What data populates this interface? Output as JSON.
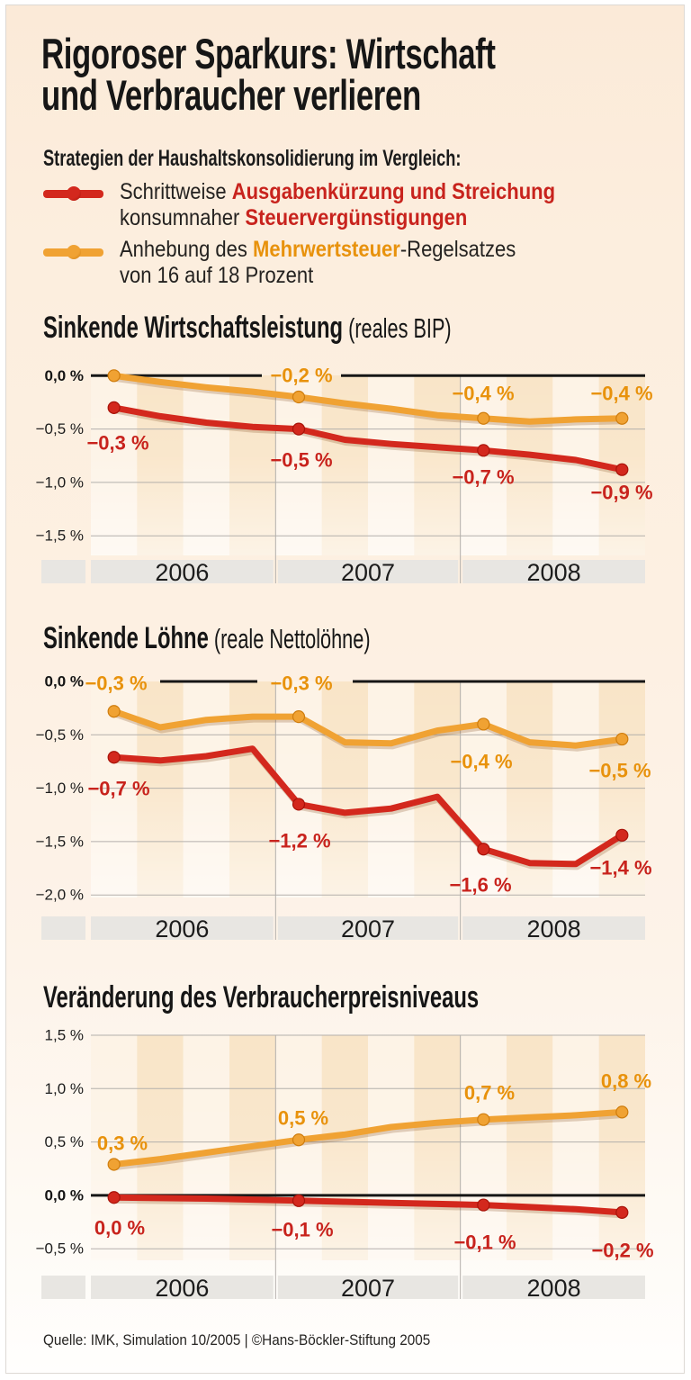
{
  "meta": {
    "colors": {
      "red_line": "#d3281d",
      "red_ring": "#a81309",
      "red_label": "#c8231d",
      "orange_line": "#f0a233",
      "orange_ring": "#cf7d0e",
      "orange_label": "#e8920c",
      "stripe_light": "#fdf3e6",
      "stripe_dark": "#f9e5c8",
      "grid": "#b3b0ac",
      "zero_line": "#161616",
      "year_box": "#e8e6e2",
      "panel_cream": "#fdf0e2"
    }
  },
  "header": {
    "title": "Rigoroser Sparkurs: Wirtschaft\nund Verbraucher verlieren",
    "subtitle": "Strategien der Haushaltskonsolidierung im Vergleich:",
    "legend": [
      {
        "color_key": "red",
        "parts": [
          {
            "t": "Schrittweise ",
            "em": false
          },
          {
            "t": "Ausgabenkürzung und Streichung",
            "em": true
          },
          {
            "t": "\nkonsumnaher ",
            "em": false
          },
          {
            "t": "Steuervergünstigungen",
            "em": true
          }
        ]
      },
      {
        "color_key": "orange",
        "parts": [
          {
            "t": "Anhebung des ",
            "em": false
          },
          {
            "t": "Mehrwertsteuer",
            "em": true
          },
          {
            "t": "-Regelsatzes\nvon 16 auf 18 Prozent",
            "em": false
          }
        ]
      }
    ]
  },
  "chart_data": [
    {
      "type": "line",
      "title": "Sinkende Wirtschaftsleistung",
      "title_note": " (reales BIP)",
      "unit": "Prozent",
      "x_years": [
        "2006",
        "2007",
        "2008"
      ],
      "points_per_year": 4,
      "ylim": [
        -1.5,
        0.0
      ],
      "grid": "on",
      "yticks": [
        {
          "value": 0.0,
          "label": "0,0 %",
          "bold": true
        },
        {
          "value": -0.5,
          "label": "−0,5 %",
          "bold": false
        },
        {
          "value": -1.0,
          "label": "−1,0 %",
          "bold": false
        },
        {
          "value": -1.5,
          "label": "−1,5 %",
          "bold": false
        }
      ],
      "series": [
        {
          "name": "Anhebung des Mehrwertsteuer-Regelsatzes",
          "color_key": "orange",
          "values": [
            0.0,
            -0.06,
            -0.11,
            -0.15,
            -0.2,
            -0.26,
            -0.31,
            -0.37,
            -0.4,
            -0.43,
            -0.41,
            -0.4
          ],
          "marker_quarters": [
            0,
            4,
            8,
            11
          ],
          "point_labels": [
            {
              "at": 4,
              "text": "−0,2 %"
            },
            {
              "at": 8,
              "text": "−0,4 %"
            },
            {
              "at": 11,
              "text": "−0,4 %"
            }
          ]
        },
        {
          "name": "Schrittweise Ausgabenkürzung und Streichung konsumnaher Steuervergünstigungen",
          "color_key": "red",
          "values": [
            -0.3,
            -0.38,
            -0.44,
            -0.48,
            -0.5,
            -0.6,
            -0.64,
            -0.67,
            -0.7,
            -0.74,
            -0.79,
            -0.88
          ],
          "marker_quarters": [
            0,
            4,
            8,
            11
          ],
          "point_labels": [
            {
              "at": 0,
              "text": "−0,3 %"
            },
            {
              "at": 4,
              "text": "−0,5 %"
            },
            {
              "at": 8,
              "text": "−0,7 %"
            },
            {
              "at": 11,
              "text": "−0,9 %"
            }
          ]
        }
      ]
    },
    {
      "type": "line",
      "title": "Sinkende Löhne",
      "title_note": " (reale Nettolöhne)",
      "unit": "Prozent",
      "x_years": [
        "2006",
        "2007",
        "2008"
      ],
      "points_per_year": 4,
      "ylim": [
        -2.0,
        0.0
      ],
      "grid": "on",
      "yticks": [
        {
          "value": 0.0,
          "label": "0,0 %",
          "bold": true
        },
        {
          "value": -0.5,
          "label": "−0,5 %",
          "bold": false
        },
        {
          "value": -1.0,
          "label": "−1,0 %",
          "bold": false
        },
        {
          "value": -1.5,
          "label": "−1,5 %",
          "bold": false
        },
        {
          "value": -2.0,
          "label": "−2,0 %",
          "bold": false
        }
      ],
      "series": [
        {
          "name": "Anhebung des Mehrwertsteuer-Regelsatzes",
          "color_key": "orange",
          "values": [
            -0.28,
            -0.43,
            -0.36,
            -0.33,
            -0.33,
            -0.57,
            -0.58,
            -0.46,
            -0.4,
            -0.57,
            -0.6,
            -0.54
          ],
          "marker_quarters": [
            0,
            4,
            8,
            11
          ],
          "point_labels": [
            {
              "at": 0,
              "text": "−0,3 %"
            },
            {
              "at": 4,
              "text": "−0,3 %"
            },
            {
              "at": 8,
              "text": "−0,4 %"
            },
            {
              "at": 11,
              "text": "−0,5 %"
            }
          ]
        },
        {
          "name": "Schrittweise Ausgabenkürzung und Streichung konsumnaher Steuervergünstigungen",
          "color_key": "red",
          "values": [
            -0.71,
            -0.74,
            -0.7,
            -0.63,
            -1.15,
            -1.23,
            -1.19,
            -1.08,
            -1.57,
            -1.7,
            -1.71,
            -1.44
          ],
          "marker_quarters": [
            0,
            4,
            8,
            11
          ],
          "point_labels": [
            {
              "at": 0,
              "text": "−0,7 %"
            },
            {
              "at": 4,
              "text": "−1,2 %"
            },
            {
              "at": 8,
              "text": "−1,6 %"
            },
            {
              "at": 11,
              "text": "−1,4 %"
            }
          ]
        }
      ]
    },
    {
      "type": "line",
      "title": "Veränderung des Verbraucherpreisniveaus",
      "title_note": "",
      "unit": "Prozent",
      "x_years": [
        "2006",
        "2007",
        "2008"
      ],
      "points_per_year": 4,
      "ylim": [
        -0.5,
        1.5
      ],
      "grid": "on",
      "yticks": [
        {
          "value": 1.5,
          "label": "1,5 %",
          "bold": false
        },
        {
          "value": 1.0,
          "label": "1,0 %",
          "bold": false
        },
        {
          "value": 0.5,
          "label": "0,5 %",
          "bold": false
        },
        {
          "value": 0.0,
          "label": "0,0 %",
          "bold": true
        },
        {
          "value": -0.5,
          "label": "−0,5 %",
          "bold": false
        }
      ],
      "series": [
        {
          "name": "Anhebung des Mehrwertsteuer-Regelsatzes",
          "color_key": "orange",
          "values": [
            0.29,
            0.34,
            0.4,
            0.46,
            0.52,
            0.57,
            0.64,
            0.68,
            0.71,
            0.73,
            0.75,
            0.78
          ],
          "marker_quarters": [
            0,
            4,
            8,
            11
          ],
          "point_labels": [
            {
              "at": 0,
              "text": "0,3 %"
            },
            {
              "at": 4,
              "text": "0,5 %"
            },
            {
              "at": 8,
              "text": "0,7 %"
            },
            {
              "at": 11,
              "text": "0,8 %"
            }
          ]
        },
        {
          "name": "Schrittweise Ausgabenkürzung und Streichung konsumnaher Steuervergünstigungen",
          "color_key": "red",
          "values": [
            -0.02,
            -0.025,
            -0.03,
            -0.04,
            -0.05,
            -0.06,
            -0.07,
            -0.08,
            -0.09,
            -0.11,
            -0.13,
            -0.16
          ],
          "marker_quarters": [
            0,
            4,
            8,
            11
          ],
          "point_labels": [
            {
              "at": 0,
              "text": "0,0 %"
            },
            {
              "at": 4,
              "text": "−0,1 %"
            },
            {
              "at": 8,
              "text": "−0,1 %"
            },
            {
              "at": 11,
              "text": "−0,2 %"
            }
          ]
        }
      ]
    }
  ],
  "footer": {
    "source": "Quelle: IMK, Simulation 10/2005 | ©Hans-Böckler-Stiftung 2005"
  }
}
